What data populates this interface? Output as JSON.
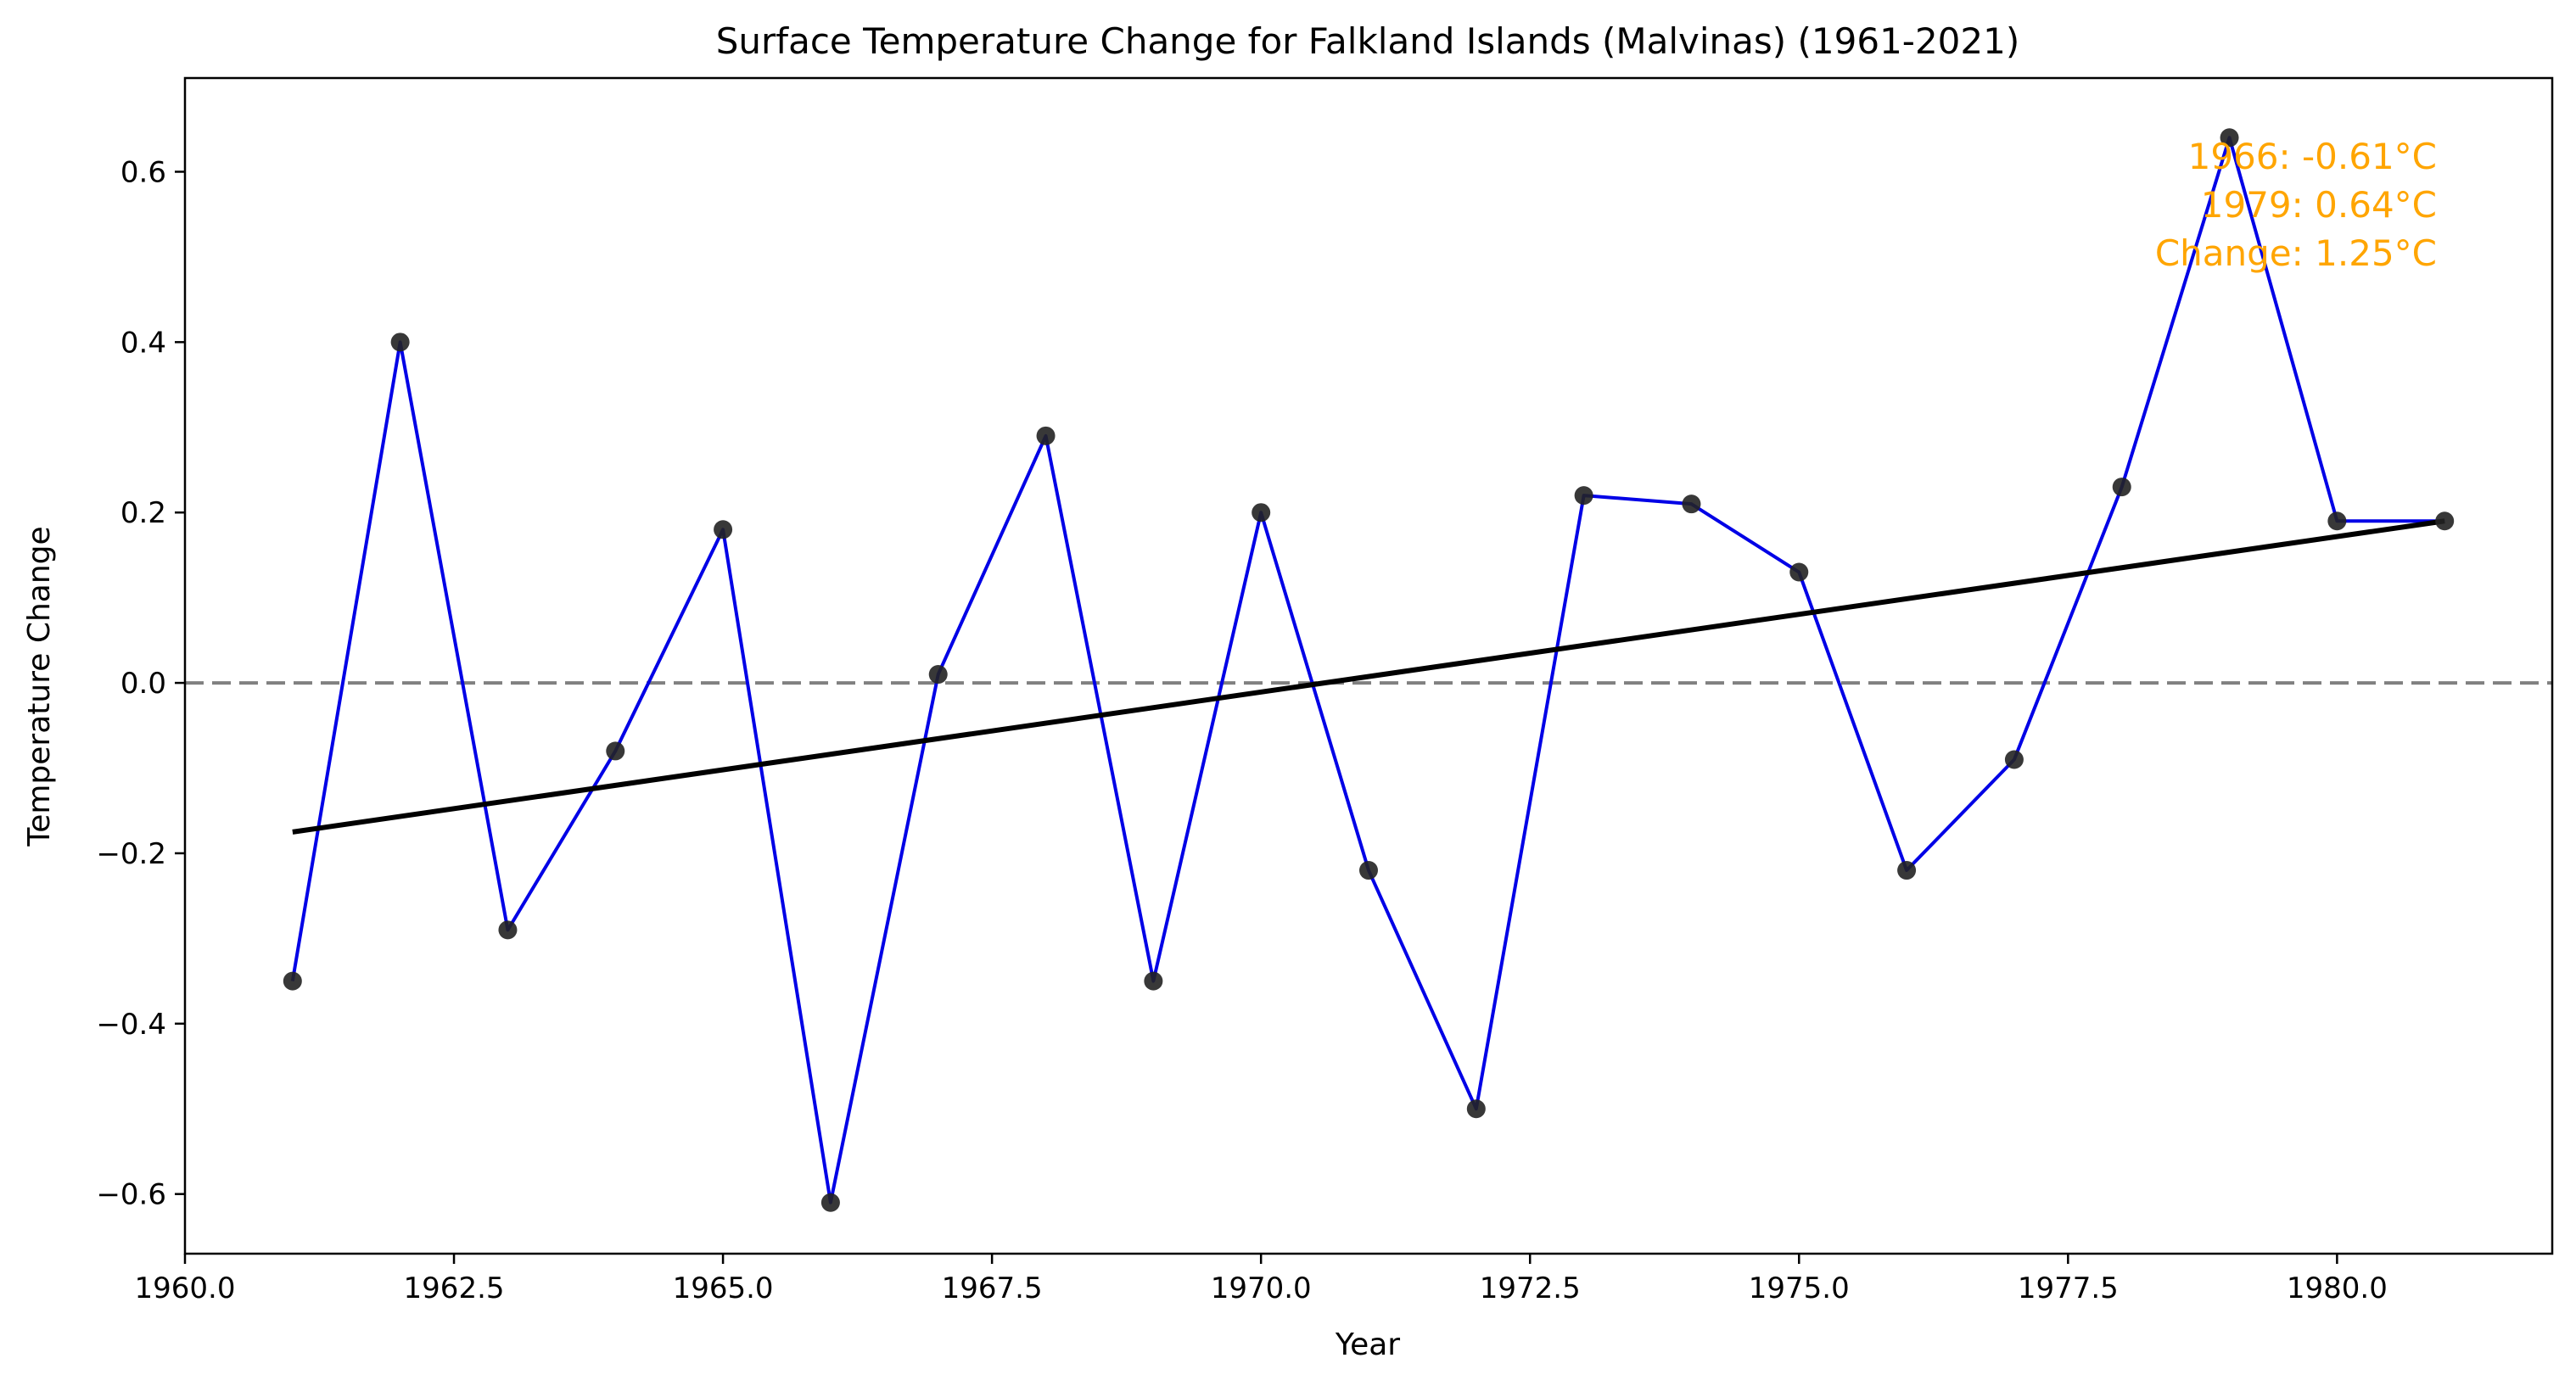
{
  "chart_data": {
    "type": "line",
    "title": "Surface Temperature Change for Falkland Islands (Malvinas) (1961-2021)",
    "xlabel": "Year",
    "ylabel": "Temperature Change",
    "xlim": [
      1960.0,
      1982.0
    ],
    "ylim": [
      -0.67,
      0.71
    ],
    "xticks": [
      1960.0,
      1962.5,
      1965.0,
      1967.5,
      1970.0,
      1972.5,
      1975.0,
      1977.5,
      1980.0
    ],
    "xtick_labels": [
      "1960.0",
      "1962.5",
      "1965.0",
      "1967.5",
      "1970.0",
      "1972.5",
      "1975.0",
      "1977.5",
      "1980.0"
    ],
    "yticks": [
      -0.6,
      -0.4,
      -0.2,
      0.0,
      0.2,
      0.4,
      0.6
    ],
    "ytick_labels": [
      "−0.6",
      "−0.4",
      "−0.2",
      "0.0",
      "0.2",
      "0.4",
      "0.6"
    ],
    "x": [
      1961,
      1962,
      1963,
      1964,
      1965,
      1966,
      1967,
      1968,
      1969,
      1970,
      1971,
      1972,
      1973,
      1974,
      1975,
      1976,
      1977,
      1978,
      1979,
      1980,
      1981
    ],
    "series": [
      {
        "values": [
          -0.35,
          0.4,
          -0.29,
          -0.08,
          0.18,
          -0.61,
          0.01,
          0.29,
          -0.35,
          0.2,
          -0.22,
          -0.5,
          0.22,
          0.21,
          0.13,
          -0.22,
          -0.09,
          0.23,
          0.64,
          0.19,
          0.19
        ],
        "line_color": "#0000e6",
        "marker_color": "#222222"
      }
    ],
    "trend": {
      "x": [
        1961,
        1981
      ],
      "y": [
        -0.175,
        0.19
      ],
      "color": "#000000"
    },
    "reference_line": {
      "y": 0.0,
      "color": "#808080",
      "style": "dashed"
    },
    "annotation": {
      "lines": [
        "1966: -0.61°C",
        "1979: 0.64°C",
        "Change: 1.25°C"
      ],
      "color": "#ffa500",
      "placement": "top-right"
    },
    "grid": false
  }
}
